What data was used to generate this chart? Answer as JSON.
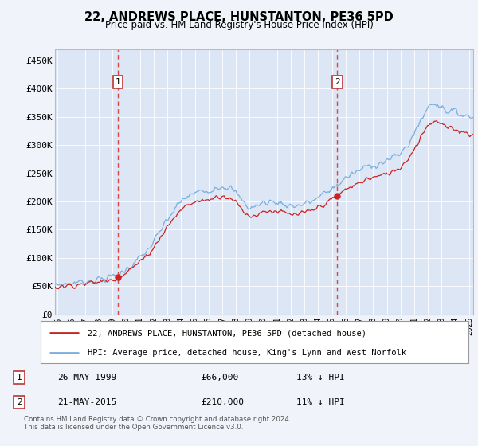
{
  "title": "22, ANDREWS PLACE, HUNSTANTON, PE36 5PD",
  "subtitle": "Price paid vs. HM Land Registry's House Price Index (HPI)",
  "background_color": "#f0f4fa",
  "plot_bg_color": "#dce6f5",
  "ylabel_ticks": [
    "£0",
    "£50K",
    "£100K",
    "£150K",
    "£200K",
    "£250K",
    "£300K",
    "£350K",
    "£400K",
    "£450K"
  ],
  "ytick_values": [
    0,
    50000,
    100000,
    150000,
    200000,
    250000,
    300000,
    350000,
    400000,
    450000
  ],
  "ylim": [
    0,
    470000
  ],
  "xlim_start": 1994.8,
  "xlim_end": 2025.3,
  "x_ticks": [
    1995,
    1996,
    1997,
    1998,
    1999,
    2000,
    2001,
    2002,
    2003,
    2004,
    2005,
    2006,
    2007,
    2008,
    2009,
    2010,
    2011,
    2012,
    2013,
    2014,
    2015,
    2016,
    2017,
    2018,
    2019,
    2020,
    2021,
    2022,
    2023,
    2024,
    2025
  ],
  "sale1_x": 1999.39,
  "sale1_y": 66000,
  "sale2_x": 2015.38,
  "sale2_y": 210000,
  "legend_line1": "22, ANDREWS PLACE, HUNSTANTON, PE36 5PD (detached house)",
  "legend_line2": "HPI: Average price, detached house, King's Lynn and West Norfolk",
  "annotation1_date": "26-MAY-1999",
  "annotation1_price": "£66,000",
  "annotation1_hpi": "13% ↓ HPI",
  "annotation2_date": "21-MAY-2015",
  "annotation2_price": "£210,000",
  "annotation2_hpi": "11% ↓ HPI",
  "footer": "Contains HM Land Registry data © Crown copyright and database right 2024.\nThis data is licensed under the Open Government Licence v3.0.",
  "line_color_red": "#cc2222",
  "line_color_blue": "#7aaedd",
  "vline_color": "#dd4444",
  "sale1_marker_color": "#cc2222",
  "sale2_marker_color": "#cc2222"
}
